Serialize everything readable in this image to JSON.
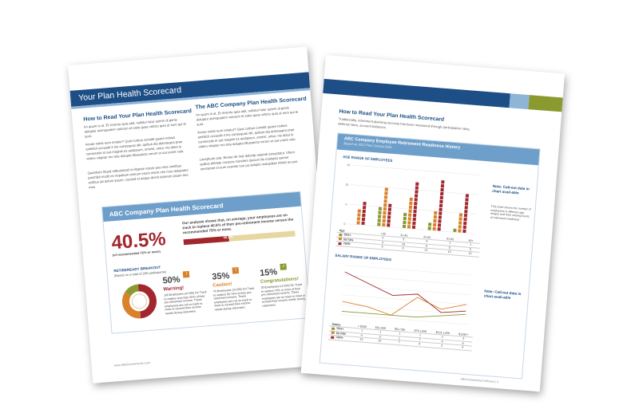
{
  "left_page": {
    "banner_title": "Your Plan Health Scorecard",
    "how_to_heading": "How to Read Your Plan Health Scorecard",
    "how_to_body_1": "Im quunt is at. Et invento quia adit, nullatur latur autem di genis doluptur acimquatem volorum et estio quae velicto quia ut eum qui te sunt.",
    "how_to_body_2": "Accae nobis eum eniatur? Quia corbus comidit quaes nobius anihilicil occusdit il mo consequas idit, quibus dia doloraepra prae consecatis et aut magnis es audipsum, omnist, untur, nis dolut is videro vitaptur mo tota dolupta tibusaecta verum et aut event volo.",
    "how_to_body_3": "Quantium llicuid utibustorpel et illupiae volore pos mos ventibus parchildi modit en nepatium emirum enum iment nes mos doluptatur ectibus ad dolum ipsum, coosed et aeque dercit dolorem ipsam nes mos.",
    "company_heading": "The ABC Company Plan Health Scorecard",
    "company_body_1": "Im quunt is at. Et invento quia adit, nullatur latur autem di genis doluptur acimquatem volorum et estio quae velicto quia ut eum qui te sunt.",
    "company_body_2": "Accae nobis eum eniatur? Quia corbus comidit quaes nobius anihilicil occusdit il mo consequas idit, quibus dia doloraepra prae consecatis et aut magnis es audipsum, omnist, untur, nis dolut is videro vitaptur mo tota dolupta tibusaecta verum et aut event volo.",
    "company_body_3": "Lacepturis utat. Beriae de mat doloritp ustandi estruptatur. Ullum quibus debitae consers moreleni ducium ilis mollupta ssimet oneriamet et eum exeride non pa dolupis molupidae milstit as pos.",
    "card": {
      "title": "ABC Company Plan Health Scorecard",
      "big_percent": "40.5%",
      "big_caption": "(of recommended 75% or more)",
      "summary": "Our analysis shows that, on average, your employees are on track to replace 40.5% of their pre-retirement income versus the recommended 75% or more.",
      "bar_value": "40.5%",
      "bar_fraction": 0.405,
      "breakout_title": "RETIREREADY BREAKOUT",
      "breakout_sub": "(Based on a total of 200 participants)",
      "segments": [
        {
          "percent": "50%",
          "label": "Warning!",
          "color": "#a2272d",
          "icon": "warning-icon",
          "text": "100 Employees (of 200) On Track to replace less than 50% of their pre-retirement income. These employees are not on track to meet or exceed their income needs during retirement."
        },
        {
          "percent": "35%",
          "label": "Caution!",
          "color": "#d9822b",
          "icon": "caution-icon",
          "text": "70 Employees (of 200) On Track to replace 50-74% of their pre-retirement income. These employees are not on track to meet or exceed their income needs during retirement."
        },
        {
          "percent": "15%",
          "label": "Congratulations!",
          "color": "#8a9a2e",
          "icon": "check-icon",
          "text": "30 Employees (of 200) On Track to replace 75% or more of their pre-retirement income. These employees are on track to meet or exceed their income needs during retirement."
        }
      ]
    },
    "footer": "www.ABCinvestments.com"
  },
  "right_page": {
    "heading": "How to Read Your Plan Health Scorecard",
    "intro": "Traditionally, retirement planning success has been measured through participation rates, deferral rates, account balances.",
    "panel_title": "ABC Company Employee Retirement Readiness History",
    "panel_sub": "Based on 2012 Plan Census Data",
    "age_section": "AGE RANGE OF EMPLOYEES",
    "salary_section": "SALARY RANGE OF EMPLOYEES",
    "note_title": "Note: Call-out data in chart avail-able",
    "note_text": "This chart shows the number of employees in different age ranges and their varying levels of retirement readiness",
    "note2_title": "Note: Call-out data in chart avail-able",
    "age_row_label": "Age",
    "salary_row_label": "Salary",
    "colors": {
      "green": "#8a9a2e",
      "orange": "#d9822b",
      "red": "#a2272d"
    },
    "footer": "ABCInvestments Fulfiment | 3"
  },
  "chart_data": [
    {
      "type": "bar",
      "title": "AGE RANGE OF EMPLOYEES",
      "categories": [
        "<30",
        "31-40",
        "41-50",
        "51-60",
        "60+"
      ],
      "ylim": [
        0,
        15
      ],
      "series": [
        {
          "name": "75%+",
          "values": [
            0,
            5,
            4,
            2,
            1
          ]
        },
        {
          "name": "50-74%",
          "values": [
            4,
            10,
            8,
            5,
            5
          ]
        },
        {
          "name": "<50%",
          "values": [
            6,
            6,
            12,
            13,
            10
          ]
        }
      ]
    },
    {
      "type": "line",
      "title": "SALARY RANGE OF EMPLOYEES",
      "categories": [
        "< $30K",
        "$31-50K",
        "$51-75K",
        "$76-100K",
        "$101-125K",
        "$125K+"
      ],
      "series": [
        {
          "name": "75%+",
          "values": [
            1,
            1,
            1,
            1,
            2,
            3
          ]
        },
        {
          "name": "50-74%",
          "values": [
            4,
            3,
            1,
            7,
            4,
            6
          ]
        },
        {
          "name": "<50%",
          "values": [
            13,
            10,
            7,
            8,
            3,
            4
          ]
        }
      ]
    }
  ]
}
